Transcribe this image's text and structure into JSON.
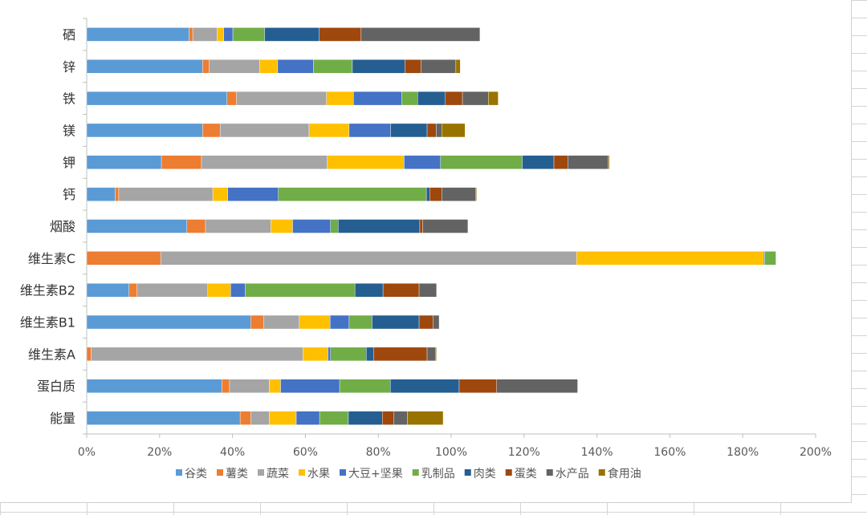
{
  "chart_data": {
    "type": "bar",
    "orientation": "horizontal",
    "stacked": true,
    "title": "",
    "xlabel": "",
    "ylabel": "",
    "xlim": [
      0,
      200
    ],
    "x_tick_labels": [
      "0%",
      "20%",
      "40%",
      "60%",
      "80%",
      "100%",
      "120%",
      "140%",
      "160%",
      "180%",
      "200%"
    ],
    "legend_position": "bottom",
    "categories": [
      "硒",
      "锌",
      "铁",
      "镁",
      "钾",
      "钙",
      "烟酸",
      "维生素C",
      "维生素B2",
      "维生素B1",
      "维生素A",
      "蛋白质",
      "能量"
    ],
    "series": [
      {
        "name": "谷类",
        "color": "#5b9bd5",
        "values": [
          28.1,
          31.8,
          38.5,
          31.8,
          20.5,
          7.8,
          27.5,
          0,
          11.6,
          45.0,
          0,
          37.1,
          42.1
        ]
      },
      {
        "name": "薯类",
        "color": "#ed7d31",
        "values": [
          1.0,
          1.8,
          2.6,
          4.8,
          11.0,
          1.0,
          5.1,
          20.3,
          2.2,
          3.6,
          1.2,
          2.1,
          2.9
        ]
      },
      {
        "name": "蔬菜",
        "color": "#a5a5a5",
        "values": [
          6.7,
          13.8,
          24.7,
          24.4,
          34.5,
          25.8,
          17.9,
          114.1,
          19.4,
          9.7,
          58.1,
          10.9,
          5.1
        ]
      },
      {
        "name": "水果",
        "color": "#ffc000",
        "values": [
          1.8,
          5.0,
          7.4,
          11.0,
          21.1,
          4.1,
          6.0,
          51.3,
          6.3,
          8.5,
          6.9,
          3.1,
          7.4
        ]
      },
      {
        "name": "大豆+坚果",
        "color": "#4472c4",
        "values": [
          2.5,
          9.8,
          13.2,
          11.4,
          10.0,
          13.9,
          10.4,
          0.3,
          4.0,
          5.2,
          0.7,
          16.2,
          6.4
        ]
      },
      {
        "name": "乳制品",
        "color": "#70ad47",
        "values": [
          8.7,
          10.7,
          4.4,
          0,
          22.4,
          40.6,
          2.1,
          3.1,
          30.1,
          6.3,
          9.8,
          13.9,
          7.9
        ]
      },
      {
        "name": "肉类",
        "color": "#255e91",
        "values": [
          15.0,
          14.4,
          7.6,
          10.0,
          8.7,
          0.9,
          22.4,
          0,
          7.7,
          12.9,
          2.0,
          18.9,
          9.3
        ]
      },
      {
        "name": "蛋类",
        "color": "#9e480e",
        "values": [
          11.5,
          4.4,
          4.7,
          2.5,
          3.8,
          3.3,
          0.8,
          0,
          9.9,
          3.8,
          14.7,
          10.3,
          3.1
        ]
      },
      {
        "name": "水产品",
        "color": "#636363",
        "values": [
          32.6,
          9.6,
          7.1,
          1.5,
          11.1,
          9.4,
          12.4,
          0,
          4.8,
          1.7,
          2.4,
          22.2,
          3.8
        ]
      },
      {
        "name": "食用油",
        "color": "#997300",
        "values": [
          0,
          1.2,
          2.7,
          6.4,
          0.3,
          0.2,
          0,
          0,
          0,
          0,
          0.2,
          0,
          9.8
        ]
      }
    ]
  }
}
